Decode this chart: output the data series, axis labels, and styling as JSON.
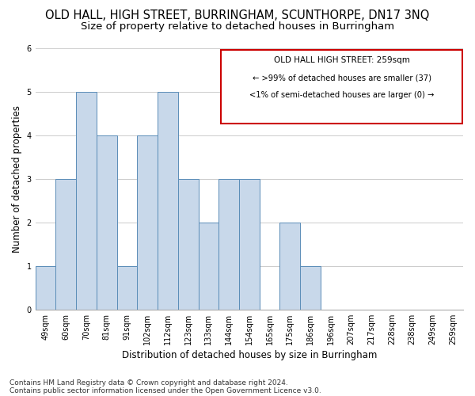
{
  "title": "OLD HALL, HIGH STREET, BURRINGHAM, SCUNTHORPE, DN17 3NQ",
  "subtitle": "Size of property relative to detached houses in Burringham",
  "xlabel": "Distribution of detached houses by size in Burringham",
  "ylabel": "Number of detached properties",
  "categories": [
    "49sqm",
    "60sqm",
    "70sqm",
    "81sqm",
    "91sqm",
    "102sqm",
    "112sqm",
    "123sqm",
    "133sqm",
    "144sqm",
    "154sqm",
    "165sqm",
    "175sqm",
    "186sqm",
    "196sqm",
    "207sqm",
    "217sqm",
    "228sqm",
    "238sqm",
    "249sqm",
    "259sqm"
  ],
  "values": [
    1,
    3,
    5,
    4,
    1,
    4,
    5,
    3,
    2,
    3,
    3,
    0,
    2,
    1,
    0,
    0,
    0,
    0,
    0,
    0,
    0
  ],
  "bar_color": "#c8d8ea",
  "bar_edge_color": "#5b8db8",
  "annotation_title": "OLD HALL HIGH STREET: 259sqm",
  "annotation_line1": "← >99% of detached houses are smaller (37)",
  "annotation_line2": "<1% of semi-detached houses are larger (0) →",
  "annotation_box_color": "#cc0000",
  "ylim": [
    0,
    6
  ],
  "yticks": [
    0,
    1,
    2,
    3,
    4,
    5,
    6
  ],
  "footer1": "Contains HM Land Registry data © Crown copyright and database right 2024.",
  "footer2": "Contains public sector information licensed under the Open Government Licence v3.0.",
  "background_color": "#ffffff",
  "grid_color": "#cccccc",
  "title_fontsize": 10.5,
  "subtitle_fontsize": 9.5,
  "axis_label_fontsize": 8.5,
  "tick_fontsize": 7,
  "footer_fontsize": 6.5,
  "annotation_fontsize": 7.5
}
